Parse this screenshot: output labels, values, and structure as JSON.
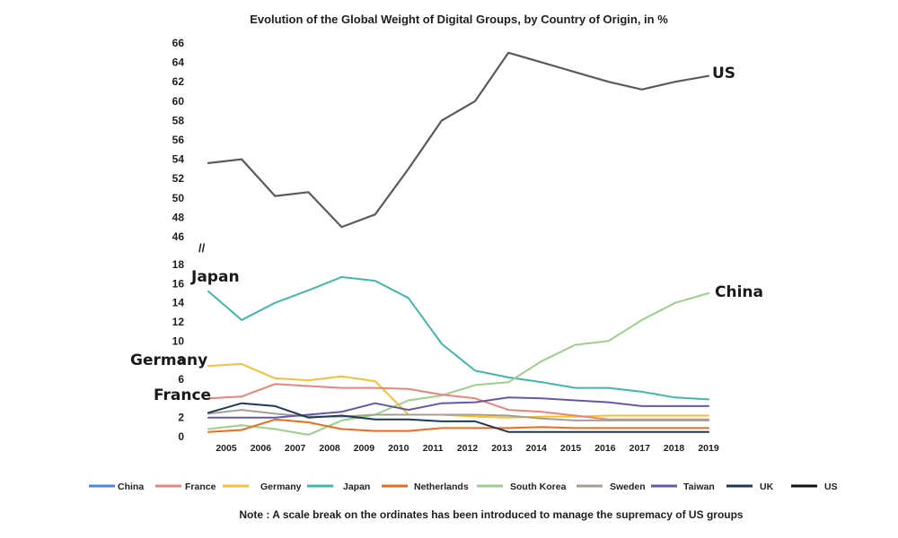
{
  "chart_data": {
    "type": "line",
    "title": "Evolution of the Global Weight of Digital Groups, by Country of Origin, in %",
    "note": "Note : A scale break on the ordinates has been introduced to manage the supremacy of US groups",
    "scale_break_mark": "//",
    "scale_break": true,
    "grid": false,
    "x": [
      2004,
      2005,
      2006,
      2007,
      2008,
      2009,
      2010,
      2011,
      2012,
      2013,
      2014,
      2015,
      2016,
      2017,
      2018,
      2019
    ],
    "x_tick_labels": [
      "2005",
      "2006",
      "2007",
      "2008",
      "2009",
      "2010",
      "2011",
      "2012",
      "2013",
      "2014",
      "2015",
      "2016",
      "2017",
      "2018",
      "2019"
    ],
    "ylim_upper": [
      46,
      66
    ],
    "ylim_lower": [
      0,
      18
    ],
    "y_upper_ticks": [
      66,
      64,
      62,
      60,
      58,
      56,
      54,
      52,
      50,
      48,
      46
    ],
    "y_lower_ticks": [
      18,
      16,
      14,
      12,
      10,
      8,
      6,
      2,
      0
    ],
    "legend_position": "bottom",
    "legend": [
      {
        "label": "China",
        "color": "#4a86e8"
      },
      {
        "label": "France",
        "color": "#e8847a"
      },
      {
        "label": "Germany",
        "color": "#f2c136"
      },
      {
        "label": "Japan",
        "color": "#43b6a9"
      },
      {
        "label": "Netherlands",
        "color": "#ee6b1d"
      },
      {
        "label": "South Korea",
        "color": "#9ccf8c"
      },
      {
        "label": "Sweden",
        "color": "#a59e95"
      },
      {
        "label": "Taiwan",
        "color": "#6558a8"
      },
      {
        "label": "UK",
        "color": "#1e3a57"
      },
      {
        "label": "US",
        "color": "#111111"
      }
    ],
    "series": [
      {
        "name": "US",
        "color": "#5a5a5a",
        "values": [
          53.6,
          54.0,
          50.2,
          50.6,
          47.0,
          48.3,
          53.0,
          58.0,
          60.0,
          65.0,
          64.0,
          63.0,
          62.0,
          61.2,
          62.0,
          62.6
        ]
      },
      {
        "name": "Japan",
        "color": "#43b6a9",
        "values": [
          15.2,
          12.2,
          14.0,
          15.3,
          16.7,
          16.3,
          14.5,
          9.7,
          6.9,
          6.2,
          5.7,
          5.1,
          5.1,
          4.7,
          4.1,
          3.9
        ]
      },
      {
        "name": "China",
        "color": "#9ccf8c",
        "values": [
          0.8,
          1.2,
          0.8,
          0.2,
          1.7,
          2.3,
          3.8,
          4.3,
          5.4,
          5.7,
          7.9,
          9.6,
          10.0,
          12.2,
          14.0,
          15.0
        ]
      },
      {
        "name": "Germany",
        "color": "#f2c136",
        "values": [
          7.4,
          7.6,
          6.1,
          5.9,
          6.3,
          5.8,
          2.3,
          2.3,
          2.1,
          2.0,
          2.1,
          2.1,
          2.2,
          2.2,
          2.2,
          2.2
        ]
      },
      {
        "name": "France",
        "color": "#e8847a",
        "values": [
          4.0,
          4.2,
          5.5,
          5.3,
          5.1,
          5.1,
          5.0,
          4.4,
          4.0,
          2.8,
          2.6,
          2.2,
          1.8,
          1.8,
          1.8,
          1.8
        ]
      },
      {
        "name": "Netherlands",
        "color": "#ee6b1d",
        "values": [
          0.5,
          0.7,
          1.8,
          1.5,
          0.8,
          0.6,
          0.6,
          0.9,
          0.9,
          0.9,
          1.0,
          0.9,
          0.9,
          0.9,
          0.9,
          0.9
        ]
      },
      {
        "name": "Sweden",
        "color": "#a59e95",
        "values": [
          2.4,
          2.8,
          2.4,
          2.1,
          2.1,
          2.3,
          2.3,
          2.3,
          2.3,
          2.2,
          1.9,
          1.7,
          1.7,
          1.7,
          1.7,
          1.7
        ]
      },
      {
        "name": "Taiwan",
        "color": "#6558a8",
        "values": [
          2.0,
          2.0,
          2.0,
          2.3,
          2.6,
          3.5,
          2.8,
          3.5,
          3.6,
          4.1,
          4.0,
          3.8,
          3.6,
          3.2,
          3.2,
          3.2
        ]
      },
      {
        "name": "UK",
        "color": "#1e3a57",
        "values": [
          2.5,
          3.5,
          3.2,
          2.0,
          2.2,
          1.8,
          1.8,
          1.6,
          1.6,
          0.5,
          0.5,
          0.5,
          0.5,
          0.5,
          0.5,
          0.5
        ]
      }
    ]
  }
}
